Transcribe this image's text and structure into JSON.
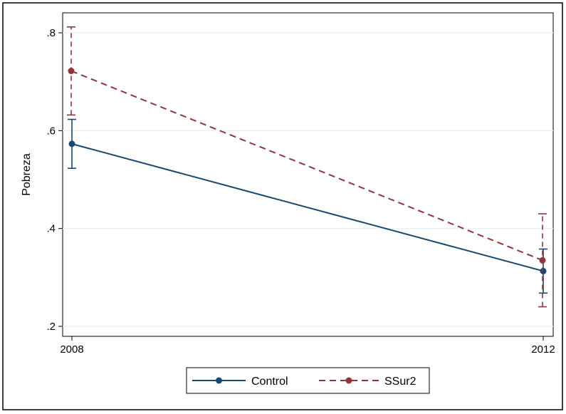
{
  "chart_data": {
    "type": "line",
    "title": "",
    "xlabel": "",
    "ylabel": "Pobreza",
    "categories": [
      "2008",
      "2012"
    ],
    "ylim": [
      0.2,
      0.8
    ],
    "yticks": [
      0.2,
      0.4,
      0.6,
      0.8
    ],
    "ytick_labels": [
      ".2",
      ".4",
      ".6",
      ".8"
    ],
    "grid": true,
    "legend_position": "bottom",
    "series": [
      {
        "name": "Control",
        "color": "#1a476f",
        "line_style": "solid",
        "values": [
          0.573,
          0.313
        ],
        "ci_low": [
          0.523,
          0.268
        ],
        "ci_high": [
          0.623,
          0.358
        ]
      },
      {
        "name": "SSur2",
        "color": "#90353b",
        "line_style": "dashed",
        "values": [
          0.722,
          0.335
        ],
        "ci_low": [
          0.632,
          0.24
        ],
        "ci_high": [
          0.812,
          0.43
        ]
      }
    ]
  }
}
